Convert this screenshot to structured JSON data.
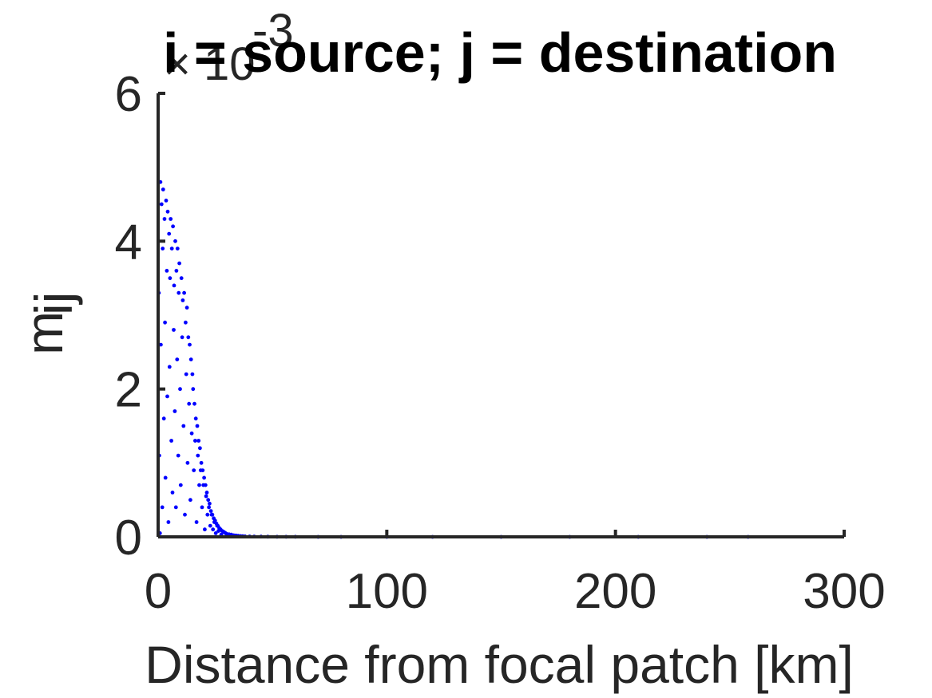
{
  "colors": {
    "points": "#0000ff",
    "axis": "#262626",
    "title": "#000000"
  },
  "chart_data": {
    "type": "scatter",
    "title": "i = source; j = destination",
    "xlabel": "Distance from focal patch [km]",
    "ylabel": {
      "base": "m",
      "subscript": "ij"
    },
    "y_multiplier": {
      "times": "×",
      "base": "10",
      "exponent": "-3"
    },
    "xlim": [
      0,
      300
    ],
    "ylim": [
      0,
      6
    ],
    "x_ticks": [
      "0",
      "100",
      "200",
      "300"
    ],
    "y_ticks": [
      "0",
      "2",
      "4",
      "6"
    ],
    "grid": false,
    "legend": "none",
    "box": "left-bottom only",
    "marker": "small dot",
    "series": [
      {
        "points": [
          [
            0.3,
            3.3
          ],
          [
            0.5,
            1.1
          ],
          [
            0.8,
            0.05
          ],
          [
            1.0,
            4.8
          ],
          [
            1.2,
            2.6
          ],
          [
            1.5,
            4.5
          ],
          [
            1.8,
            0.4
          ],
          [
            2.0,
            3.9
          ],
          [
            2.2,
            4.7
          ],
          [
            2.5,
            1.6
          ],
          [
            2.8,
            4.3
          ],
          [
            3.0,
            2.9
          ],
          [
            3.2,
            0.8
          ],
          [
            3.5,
            4.55
          ],
          [
            3.8,
            3.6
          ],
          [
            4.0,
            1.9
          ],
          [
            4.2,
            4.4
          ],
          [
            4.5,
            0.2
          ],
          [
            4.8,
            4.1
          ],
          [
            5.0,
            2.3
          ],
          [
            5.2,
            3.5
          ],
          [
            5.5,
            4.3
          ],
          [
            5.8,
            1.3
          ],
          [
            6.0,
            3.9
          ],
          [
            6.3,
            0.6
          ],
          [
            6.5,
            4.2
          ],
          [
            6.8,
            2.8
          ],
          [
            7.0,
            3.4
          ],
          [
            7.3,
            1.7
          ],
          [
            7.5,
            4.0
          ],
          [
            7.8,
            0.4
          ],
          [
            8.0,
            3.6
          ],
          [
            8.3,
            2.4
          ],
          [
            8.5,
            3.9
          ],
          [
            8.8,
            1.1
          ],
          [
            9.0,
            3.3
          ],
          [
            9.3,
            3.7
          ],
          [
            9.6,
            2.0
          ],
          [
            9.9,
            0.7
          ],
          [
            10.2,
            3.5
          ],
          [
            10.5,
            2.7
          ],
          [
            10.8,
            3.2
          ],
          [
            11.1,
            1.5
          ],
          [
            11.4,
            3.3
          ],
          [
            11.7,
            0.3
          ],
          [
            12.0,
            2.9
          ],
          [
            12.3,
            2.2
          ],
          [
            12.6,
            3.1
          ],
          [
            12.9,
            1.0
          ],
          [
            13.2,
            2.7
          ],
          [
            13.5,
            1.8
          ],
          [
            13.8,
            2.6
          ],
          [
            14.1,
            0.5
          ],
          [
            14.4,
            2.4
          ],
          [
            14.7,
            1.4
          ],
          [
            15.0,
            2.2
          ],
          [
            15.3,
            2.0
          ],
          [
            15.6,
            0.9
          ],
          [
            15.9,
            1.8
          ],
          [
            16.2,
            1.3
          ],
          [
            16.5,
            1.6
          ],
          [
            16.8,
            0.2
          ],
          [
            17.1,
            1.5
          ],
          [
            17.4,
            1.1
          ],
          [
            17.7,
            1.3
          ],
          [
            18.0,
            0.7
          ],
          [
            18.3,
            1.2
          ],
          [
            18.6,
            0.9
          ],
          [
            18.9,
            1.0
          ],
          [
            19.2,
            0.4
          ],
          [
            19.5,
            0.9
          ],
          [
            19.8,
            0.7
          ],
          [
            20.1,
            0.8
          ],
          [
            20.4,
            0.1
          ],
          [
            20.7,
            0.7
          ],
          [
            21.0,
            0.55
          ],
          [
            21.3,
            0.6
          ],
          [
            21.6,
            0.3
          ],
          [
            21.9,
            0.5
          ],
          [
            22.2,
            0.4
          ],
          [
            22.5,
            0.45
          ],
          [
            22.8,
            0.15
          ],
          [
            23.1,
            0.35
          ],
          [
            23.4,
            0.3
          ],
          [
            23.7,
            0.3
          ],
          [
            24.0,
            0.1
          ],
          [
            24.3,
            0.25
          ],
          [
            24.6,
            0.2
          ],
          [
            24.9,
            0.22
          ],
          [
            25.2,
            0.05
          ],
          [
            25.5,
            0.18
          ],
          [
            25.8,
            0.15
          ],
          [
            26.1,
            0.15
          ],
          [
            26.4,
            0.08
          ],
          [
            26.7,
            0.12
          ],
          [
            27.0,
            0.1
          ],
          [
            27.3,
            0.1
          ],
          [
            27.6,
            0.03
          ],
          [
            28.0,
            0.08
          ],
          [
            28.5,
            0.07
          ],
          [
            29.0,
            0.06
          ],
          [
            29.5,
            0.05
          ],
          [
            30.0,
            0.04
          ],
          [
            31.0,
            0.035
          ],
          [
            32.0,
            0.03
          ],
          [
            33.0,
            0.022
          ],
          [
            34.0,
            0.018
          ],
          [
            35.0,
            0.014
          ],
          [
            36.0,
            0.011
          ],
          [
            37.0,
            0.009
          ],
          [
            38.0,
            0.007
          ],
          [
            40.0,
            0.005
          ],
          [
            42.0,
            0.004
          ],
          [
            45.0,
            0.003
          ],
          [
            48.0,
            0.002
          ],
          [
            52.0,
            0.0015
          ],
          [
            56.0,
            0.001
          ],
          [
            60.0,
            0.0008
          ],
          [
            70.0,
            0.0005
          ],
          [
            80.0,
            0.0003
          ],
          [
            100.0,
            0.0002
          ],
          [
            120.0,
            0.0001
          ],
          [
            150.0,
            0.0001
          ],
          [
            180.0,
            0.0001
          ],
          [
            210.0,
            0.0001
          ],
          [
            240.0,
            0.0
          ],
          [
            258.0,
            0.0
          ]
        ]
      }
    ]
  }
}
